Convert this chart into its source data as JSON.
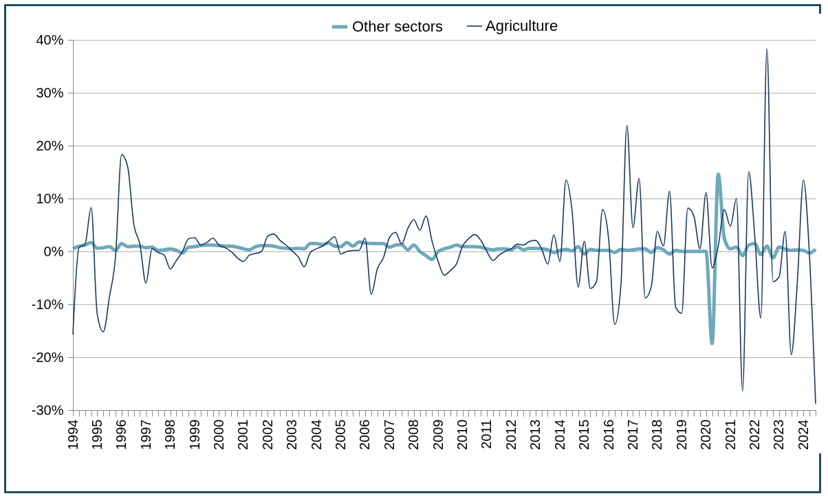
{
  "chart_data": {
    "type": "line",
    "categories": [
      "1994",
      null,
      null,
      null,
      "1995",
      null,
      null,
      null,
      "1996",
      null,
      null,
      null,
      "1997",
      null,
      null,
      null,
      "1998",
      null,
      null,
      null,
      "1999",
      null,
      null,
      null,
      "2000",
      null,
      null,
      null,
      "2001",
      null,
      null,
      null,
      "2002",
      null,
      null,
      null,
      "2003",
      null,
      null,
      null,
      "2004",
      null,
      null,
      null,
      "2005",
      null,
      null,
      null,
      "2006",
      null,
      null,
      null,
      "2007",
      null,
      null,
      null,
      "2008",
      null,
      null,
      null,
      "2009",
      null,
      null,
      null,
      "2010",
      null,
      null,
      null,
      "2011",
      null,
      null,
      null,
      "2012",
      null,
      null,
      null,
      "2013",
      null,
      null,
      null,
      "2014",
      null,
      null,
      null,
      "2015",
      null,
      null,
      null,
      "2016",
      null,
      null,
      null,
      "2017",
      null,
      null,
      null,
      "2018",
      null,
      null,
      null,
      "2019",
      null,
      null,
      null,
      "2020",
      null,
      null,
      null,
      "2021",
      null,
      null,
      null,
      "2022",
      null,
      null,
      null,
      "2023",
      null,
      null,
      null,
      "2024",
      null,
      null
    ],
    "series": [
      {
        "name": "Other sectors",
        "color": "#6fa8bb",
        "values": [
          0.5,
          1.0,
          1.2,
          1.7,
          0.6,
          0.7,
          0.9,
          0.2,
          1.5,
          0.9,
          1.0,
          1.0,
          0.7,
          0.8,
          0.2,
          0.3,
          0.5,
          0.2,
          -0.3,
          0.8,
          0.9,
          1.1,
          1.2,
          1.2,
          1.1,
          1.0,
          1.0,
          0.8,
          0.5,
          0.3,
          0.9,
          1.1,
          1.1,
          1.0,
          0.7,
          0.6,
          0.5,
          0.6,
          0.5,
          1.5,
          1.5,
          1.3,
          1.6,
          1.0,
          0.9,
          1.7,
          1.0,
          1.8,
          1.6,
          1.5,
          1.5,
          1.5,
          0.8,
          1.2,
          1.3,
          0.3,
          1.2,
          0.0,
          -0.8,
          -1.5,
          0.0,
          0.5,
          0.8,
          1.2,
          0.9,
          0.9,
          0.9,
          0.8,
          0.5,
          0.3,
          0.5,
          0.5,
          0.3,
          0.9,
          0.3,
          0.6,
          0.6,
          0.5,
          0.3,
          -0.2,
          0.2,
          0.4,
          0.1,
          0.9,
          -0.5,
          0.4,
          0.2,
          0.2,
          0.2,
          -0.2,
          0.4,
          0.2,
          0.3,
          0.5,
          0.5,
          -0.2,
          0.7,
          0.3,
          -0.5,
          0.2,
          0.0,
          0.0,
          0.0,
          0.0,
          0.0,
          -17.4,
          14.6,
          2.5,
          0.5,
          0.8,
          -0.8,
          1.2,
          1.5,
          -0.6,
          1.0,
          -1.2,
          0.8,
          0.4,
          0.2,
          0.3,
          0.2,
          -0.3,
          0.4
        ]
      },
      {
        "name": "Agriculture",
        "color": "#17375e",
        "values": [
          -15.7,
          0.7,
          1.4,
          8.3,
          -11.9,
          -15.2,
          -8.6,
          -1.0,
          18.3,
          16.0,
          5.2,
          1.4,
          -6.0,
          0.5,
          -0.2,
          -0.7,
          -3.3,
          -1.7,
          0.0,
          2.4,
          2.6,
          1.2,
          1.7,
          2.5,
          1.2,
          0.7,
          0.0,
          -1.2,
          -1.9,
          -0.7,
          -0.4,
          0.0,
          2.9,
          3.3,
          2.1,
          1.2,
          0.1,
          -1.0,
          -2.9,
          -0.2,
          0.5,
          1.0,
          1.9,
          2.8,
          -0.5,
          0.0,
          0.2,
          0.2,
          2.5,
          -8.1,
          -3.3,
          -1.2,
          2.6,
          3.6,
          1.4,
          4.3,
          6.0,
          4.0,
          6.7,
          1.9,
          -1.9,
          -4.5,
          -3.6,
          -2.4,
          1.0,
          2.4,
          3.2,
          2.1,
          0.0,
          -1.7,
          -0.7,
          0.0,
          0.5,
          1.4,
          1.2,
          1.9,
          2.1,
          0.5,
          -2.4,
          3.1,
          -1.9,
          13.5,
          7.6,
          -6.7,
          1.9,
          -7.0,
          -5.7,
          7.9,
          2.4,
          -13.8,
          -6.7,
          23.8,
          4.5,
          13.8,
          -8.8,
          -6.7,
          3.8,
          1.0,
          11.4,
          -10.5,
          -11.7,
          8.2,
          6.7,
          0.5,
          11.1,
          -3.1,
          1.0,
          7.9,
          4.8,
          10.0,
          -26.4,
          15.1,
          3.0,
          -12.6,
          38.3,
          -5.7,
          -4.8,
          3.8,
          -19.5,
          -5.7,
          13.5,
          -1.0,
          -28.8
        ]
      }
    ],
    "ylim": [
      -30,
      40
    ],
    "yticks": [
      {
        "value": -30,
        "label": "-30%"
      },
      {
        "value": -20,
        "label": "-20%"
      },
      {
        "value": -10,
        "label": "-10%"
      },
      {
        "value": 0,
        "label": "0%"
      },
      {
        "value": 10,
        "label": "10%"
      },
      {
        "value": 20,
        "label": "20%"
      },
      {
        "value": 30,
        "label": "30%"
      },
      {
        "value": 40,
        "label": "40%"
      }
    ],
    "grid": "y",
    "legend": "top",
    "marker": "none",
    "line_style": "solid"
  }
}
